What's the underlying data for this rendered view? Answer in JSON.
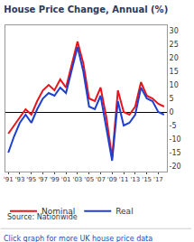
{
  "chart_data": {
    "type": "line",
    "title": "House Price Change, Annual (%)",
    "x": [
      1991,
      1992,
      1993,
      1994,
      1995,
      1996,
      1997,
      1998,
      1999,
      2000,
      2001,
      2002,
      2003,
      2004,
      2005,
      2006,
      2007,
      2008,
      2009,
      2010,
      2011,
      2012,
      2013,
      2014,
      2015,
      2016,
      2017,
      2018
    ],
    "series": [
      {
        "name": "Nominal",
        "color": "#e8141b",
        "values": [
          -8,
          -5,
          -2,
          1,
          -1,
          4,
          8,
          10,
          8,
          12,
          9,
          18,
          26,
          18,
          5,
          4,
          9,
          -2,
          -17,
          8,
          0,
          -1,
          2,
          11,
          6,
          5,
          3,
          2
        ]
      },
      {
        "name": "Real",
        "color": "#1f3fd1",
        "values": [
          -15,
          -9,
          -4,
          -1,
          -4,
          1,
          5,
          7,
          6,
          9,
          7,
          16,
          24,
          15,
          2,
          1,
          6,
          -6,
          -18,
          4,
          -5,
          -4,
          -1,
          9,
          5,
          4,
          0,
          -1
        ]
      }
    ],
    "xlim": [
      1990.5,
      2018.5
    ],
    "xticks": [
      {
        "value": 1991,
        "label": "'91"
      },
      {
        "value": 1993,
        "label": "'93"
      },
      {
        "value": 1995,
        "label": "'95"
      },
      {
        "value": 1997,
        "label": "'97"
      },
      {
        "value": 1999,
        "label": "'99"
      },
      {
        "value": 2001,
        "label": "'01"
      },
      {
        "value": 2003,
        "label": "'03"
      },
      {
        "value": 2005,
        "label": "'05"
      },
      {
        "value": 2007,
        "label": "'07"
      },
      {
        "value": 2009,
        "label": "'09"
      },
      {
        "value": 2011,
        "label": "'11"
      },
      {
        "value": 2013,
        "label": "'13"
      },
      {
        "value": 2015,
        "label": "'15"
      },
      {
        "value": 2017,
        "label": "'17"
      }
    ],
    "ylim": [
      -22,
      32
    ],
    "yticks": [
      -20,
      -15,
      -10,
      -5,
      0,
      5,
      10,
      15,
      20,
      25,
      30
    ],
    "grid": false,
    "legend": "bottom left",
    "annotations": [
      "Source: Nationwide",
      "Click graph for more UK house price data"
    ]
  }
}
